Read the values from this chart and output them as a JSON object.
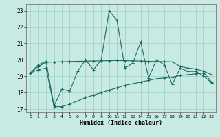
{
  "xlabel": "Humidex (Indice chaleur)",
  "xlim": [
    -0.5,
    23.5
  ],
  "ylim": [
    16.8,
    23.4
  ],
  "yticks": [
    17,
    18,
    19,
    20,
    21,
    22,
    23
  ],
  "xticks": [
    0,
    1,
    2,
    3,
    4,
    5,
    6,
    7,
    8,
    9,
    10,
    11,
    12,
    13,
    14,
    15,
    16,
    17,
    18,
    19,
    20,
    21,
    22,
    23
  ],
  "bg_color": "#c8eae4",
  "grid_color": "#a0ccc4",
  "line_color": "#1a6b5a",
  "line1_x": [
    0,
    1,
    2,
    3,
    4,
    5,
    6,
    7,
    8,
    9,
    10,
    11,
    12,
    13,
    14,
    15,
    16,
    17,
    18,
    19,
    20,
    21,
    22,
    23
  ],
  "line1_y": [
    19.2,
    19.7,
    19.9,
    17.2,
    18.2,
    18.1,
    19.3,
    20.0,
    19.4,
    20.0,
    23.0,
    22.4,
    19.5,
    19.8,
    21.1,
    18.9,
    20.0,
    19.7,
    18.5,
    19.5,
    19.3,
    19.3,
    19.0,
    18.6
  ],
  "line2_x": [
    0,
    1,
    2,
    3,
    4,
    5,
    6,
    7,
    8,
    9,
    10,
    11,
    12,
    13,
    14,
    15,
    16,
    17,
    18,
    19,
    20,
    21,
    22,
    23
  ],
  "line2_y": [
    19.2,
    19.6,
    19.85,
    19.87,
    19.88,
    19.9,
    19.91,
    19.92,
    19.93,
    19.94,
    19.95,
    19.96,
    19.95,
    19.94,
    19.93,
    19.91,
    19.9,
    19.89,
    19.88,
    19.6,
    19.5,
    19.45,
    19.3,
    19.1
  ],
  "line3_x": [
    0,
    1,
    2,
    3,
    4,
    5,
    6,
    7,
    8,
    9,
    10,
    11,
    12,
    13,
    14,
    15,
    16,
    17,
    18,
    19,
    20,
    21,
    22,
    23
  ],
  "line3_y": [
    19.2,
    19.4,
    19.5,
    17.15,
    17.15,
    17.3,
    17.5,
    17.7,
    17.85,
    18.0,
    18.15,
    18.3,
    18.45,
    18.55,
    18.65,
    18.75,
    18.85,
    18.9,
    18.95,
    19.05,
    19.1,
    19.15,
    19.2,
    18.65
  ]
}
